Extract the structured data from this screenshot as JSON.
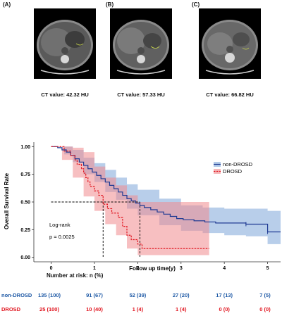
{
  "panels": [
    {
      "label": "(A)",
      "caption": "CT value: 42.32 HU"
    },
    {
      "label": "(B)",
      "caption": "CT value: 57.33 HU"
    },
    {
      "label": "(C)",
      "caption": "CT value: 66.82 HU"
    }
  ],
  "chart_data": {
    "type": "line",
    "title": "",
    "xlabel": "Follow up time(y)",
    "ylabel": "Overall Survival Rate",
    "xlim": [
      -0.4,
      5.3
    ],
    "ylim": [
      -0.04,
      1.04
    ],
    "x_ticks": [
      "0",
      "1",
      "2",
      "3",
      "4",
      "5"
    ],
    "y_ticks": [
      "0.00",
      "0.25",
      "0.50",
      "0.75",
      "1.00"
    ],
    "legend_position": "right",
    "annotation": [
      "Log-rank",
      "p = 0.0025"
    ],
    "series": [
      {
        "name": "non-DROSD",
        "color": "#1f3a93",
        "ci_color": "#7ea6d8",
        "steps": [
          [
            0,
            1.0
          ],
          [
            0.15,
            0.99
          ],
          [
            0.25,
            0.97
          ],
          [
            0.35,
            0.95
          ],
          [
            0.45,
            0.92
          ],
          [
            0.55,
            0.89
          ],
          [
            0.65,
            0.86
          ],
          [
            0.75,
            0.83
          ],
          [
            0.85,
            0.8
          ],
          [
            0.95,
            0.77
          ],
          [
            1.05,
            0.74
          ],
          [
            1.15,
            0.71
          ],
          [
            1.25,
            0.68
          ],
          [
            1.35,
            0.65
          ],
          [
            1.45,
            0.62
          ],
          [
            1.55,
            0.59
          ],
          [
            1.65,
            0.56
          ],
          [
            1.75,
            0.53
          ],
          [
            1.85,
            0.51
          ],
          [
            1.95,
            0.49
          ],
          [
            2.05,
            0.47
          ],
          [
            2.15,
            0.45
          ],
          [
            2.3,
            0.43
          ],
          [
            2.45,
            0.41
          ],
          [
            2.6,
            0.39
          ],
          [
            2.75,
            0.37
          ],
          [
            2.9,
            0.35
          ],
          [
            3.05,
            0.34
          ],
          [
            3.3,
            0.33
          ],
          [
            3.55,
            0.32
          ],
          [
            3.8,
            0.31
          ],
          [
            4.5,
            0.3
          ],
          [
            5.0,
            0.23
          ],
          [
            5.3,
            0.23
          ]
        ],
        "ci_upper": [
          [
            0,
            1.0
          ],
          [
            0.3,
            1.0
          ],
          [
            0.5,
            0.97
          ],
          [
            0.75,
            0.9
          ],
          [
            1.0,
            0.85
          ],
          [
            1.25,
            0.79
          ],
          [
            1.5,
            0.72
          ],
          [
            1.75,
            0.66
          ],
          [
            2.0,
            0.61
          ],
          [
            2.5,
            0.53
          ],
          [
            3.0,
            0.47
          ],
          [
            3.5,
            0.45
          ],
          [
            4.0,
            0.44
          ],
          [
            4.5,
            0.44
          ],
          [
            5.0,
            0.42
          ],
          [
            5.3,
            0.42
          ]
        ],
        "ci_lower": [
          [
            0,
            1.0
          ],
          [
            0.3,
            0.93
          ],
          [
            0.5,
            0.86
          ],
          [
            0.75,
            0.75
          ],
          [
            1.0,
            0.68
          ],
          [
            1.25,
            0.59
          ],
          [
            1.5,
            0.52
          ],
          [
            1.75,
            0.44
          ],
          [
            2.0,
            0.38
          ],
          [
            2.5,
            0.29
          ],
          [
            3.0,
            0.24
          ],
          [
            3.5,
            0.22
          ],
          [
            4.0,
            0.2
          ],
          [
            4.5,
            0.19
          ],
          [
            5.0,
            0.12
          ],
          [
            5.3,
            0.12
          ]
        ]
      },
      {
        "name": "DROSD",
        "color": "#e0141e",
        "ci_color": "#f08a8e",
        "steps": [
          [
            0,
            1.0
          ],
          [
            0.3,
            0.96
          ],
          [
            0.45,
            0.92
          ],
          [
            0.55,
            0.88
          ],
          [
            0.6,
            0.84
          ],
          [
            0.7,
            0.8
          ],
          [
            0.75,
            0.76
          ],
          [
            0.8,
            0.72
          ],
          [
            0.85,
            0.68
          ],
          [
            0.9,
            0.64
          ],
          [
            1.0,
            0.6
          ],
          [
            1.1,
            0.56
          ],
          [
            1.2,
            0.48
          ],
          [
            1.3,
            0.44
          ],
          [
            1.4,
            0.4
          ],
          [
            1.55,
            0.36
          ],
          [
            1.65,
            0.28
          ],
          [
            1.75,
            0.2
          ],
          [
            1.85,
            0.16
          ],
          [
            2.0,
            0.12
          ],
          [
            2.1,
            0.08
          ],
          [
            3.65,
            0.08
          ]
        ],
        "ci_upper": [
          [
            0,
            1.0
          ],
          [
            0.25,
            1.0
          ],
          [
            0.5,
            0.99
          ],
          [
            0.75,
            0.95
          ],
          [
            1.0,
            0.82
          ],
          [
            1.25,
            0.72
          ],
          [
            1.5,
            0.65
          ],
          [
            1.75,
            0.56
          ],
          [
            2.0,
            0.5
          ],
          [
            3.65,
            0.5
          ]
        ],
        "ci_lower": [
          [
            0,
            1.0
          ],
          [
            0.25,
            0.88
          ],
          [
            0.5,
            0.72
          ],
          [
            0.75,
            0.55
          ],
          [
            1.0,
            0.42
          ],
          [
            1.25,
            0.3
          ],
          [
            1.5,
            0.2
          ],
          [
            1.75,
            0.08
          ],
          [
            2.0,
            0.02
          ],
          [
            3.65,
            0.0
          ]
        ]
      }
    ],
    "median_lines": [
      {
        "series": "DROSD",
        "x": 1.2,
        "y": 0.5
      },
      {
        "series": "non-DROSD",
        "x": 2.05,
        "y": 0.5
      }
    ],
    "risk_table": {
      "title": "Number at risk: n (%)",
      "groups": [
        {
          "name": "non-DROSD",
          "color": "#1f5aa6",
          "values": [
            "135 (100)",
            "91 (67)",
            "52 (39)",
            "27 (20)",
            "17 (13)",
            "7 (5)"
          ]
        },
        {
          "name": "DROSD",
          "color": "#e0141e",
          "values": [
            "25 (100)",
            "10 (40)",
            "1 (4)",
            "1 (4)",
            "0 (0)",
            "0 (0)"
          ]
        }
      ]
    }
  }
}
